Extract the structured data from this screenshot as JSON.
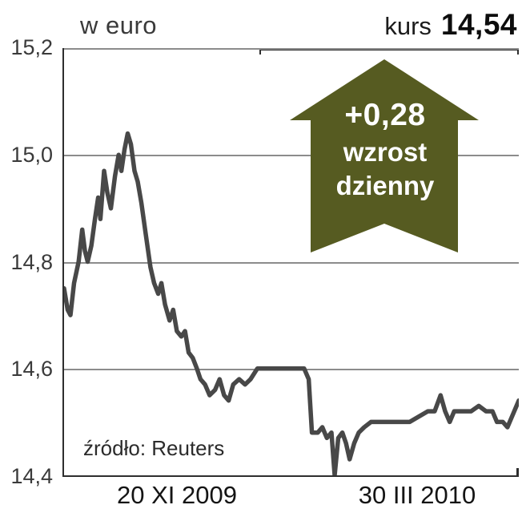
{
  "header": {
    "title": "w euro",
    "kurs_label": "kurs",
    "kurs_value": "14,54"
  },
  "badge": {
    "change": "+0,28",
    "label_line1": "wzrost",
    "label_line2": "dzienny",
    "color": "#565b21",
    "direction": "up"
  },
  "source": "źródło: Reuters",
  "chart_data": {
    "type": "line",
    "title": "w euro",
    "xlabel": "",
    "ylabel": "",
    "ylim": [
      14.4,
      15.2
    ],
    "grid": true,
    "line_color": "#484848",
    "y_ticks": [
      {
        "value": 15.2,
        "label": "15,2"
      },
      {
        "value": 15.0,
        "label": "15,0"
      },
      {
        "value": 14.8,
        "label": "14,8"
      },
      {
        "value": 14.6,
        "label": "14,6"
      },
      {
        "value": 14.4,
        "label": "14,4"
      }
    ],
    "x_ticks": [
      "20 XI 2009",
      "30 III 2010"
    ],
    "points": [
      [
        0.0,
        14.75
      ],
      [
        0.008,
        14.71
      ],
      [
        0.014,
        14.7
      ],
      [
        0.022,
        14.76
      ],
      [
        0.032,
        14.8
      ],
      [
        0.04,
        14.86
      ],
      [
        0.046,
        14.82
      ],
      [
        0.052,
        14.8
      ],
      [
        0.06,
        14.83
      ],
      [
        0.068,
        14.88
      ],
      [
        0.075,
        14.92
      ],
      [
        0.08,
        14.88
      ],
      [
        0.088,
        14.97
      ],
      [
        0.095,
        14.93
      ],
      [
        0.103,
        14.9
      ],
      [
        0.112,
        14.96
      ],
      [
        0.12,
        15.0
      ],
      [
        0.126,
        14.97
      ],
      [
        0.133,
        15.01
      ],
      [
        0.14,
        15.04
      ],
      [
        0.147,
        15.02
      ],
      [
        0.155,
        14.97
      ],
      [
        0.162,
        14.95
      ],
      [
        0.17,
        14.91
      ],
      [
        0.18,
        14.85
      ],
      [
        0.19,
        14.79
      ],
      [
        0.198,
        14.76
      ],
      [
        0.207,
        14.74
      ],
      [
        0.214,
        14.76
      ],
      [
        0.222,
        14.72
      ],
      [
        0.232,
        14.69
      ],
      [
        0.24,
        14.71
      ],
      [
        0.248,
        14.67
      ],
      [
        0.258,
        14.66
      ],
      [
        0.266,
        14.67
      ],
      [
        0.274,
        14.63
      ],
      [
        0.283,
        14.62
      ],
      [
        0.292,
        14.6
      ],
      [
        0.3,
        14.58
      ],
      [
        0.31,
        14.57
      ],
      [
        0.32,
        14.55
      ],
      [
        0.332,
        14.56
      ],
      [
        0.342,
        14.58
      ],
      [
        0.352,
        14.55
      ],
      [
        0.362,
        14.54
      ],
      [
        0.372,
        14.57
      ],
      [
        0.385,
        14.58
      ],
      [
        0.398,
        14.57
      ],
      [
        0.41,
        14.58
      ],
      [
        0.425,
        14.6
      ],
      [
        0.45,
        14.6
      ],
      [
        0.48,
        14.6
      ],
      [
        0.51,
        14.6
      ],
      [
        0.528,
        14.6
      ],
      [
        0.538,
        14.58
      ],
      [
        0.545,
        14.48
      ],
      [
        0.558,
        14.48
      ],
      [
        0.568,
        14.49
      ],
      [
        0.578,
        14.47
      ],
      [
        0.588,
        14.48
      ],
      [
        0.595,
        14.4
      ],
      [
        0.603,
        14.47
      ],
      [
        0.612,
        14.48
      ],
      [
        0.62,
        14.46
      ],
      [
        0.628,
        14.43
      ],
      [
        0.638,
        14.46
      ],
      [
        0.648,
        14.48
      ],
      [
        0.66,
        14.49
      ],
      [
        0.675,
        14.5
      ],
      [
        0.7,
        14.5
      ],
      [
        0.73,
        14.5
      ],
      [
        0.76,
        14.5
      ],
      [
        0.78,
        14.51
      ],
      [
        0.8,
        14.52
      ],
      [
        0.815,
        14.52
      ],
      [
        0.828,
        14.55
      ],
      [
        0.838,
        14.52
      ],
      [
        0.848,
        14.5
      ],
      [
        0.858,
        14.52
      ],
      [
        0.875,
        14.52
      ],
      [
        0.895,
        14.52
      ],
      [
        0.912,
        14.53
      ],
      [
        0.928,
        14.52
      ],
      [
        0.942,
        14.52
      ],
      [
        0.952,
        14.5
      ],
      [
        0.965,
        14.5
      ],
      [
        0.975,
        14.49
      ],
      [
        0.985,
        14.51
      ],
      [
        1.0,
        14.54
      ]
    ]
  }
}
